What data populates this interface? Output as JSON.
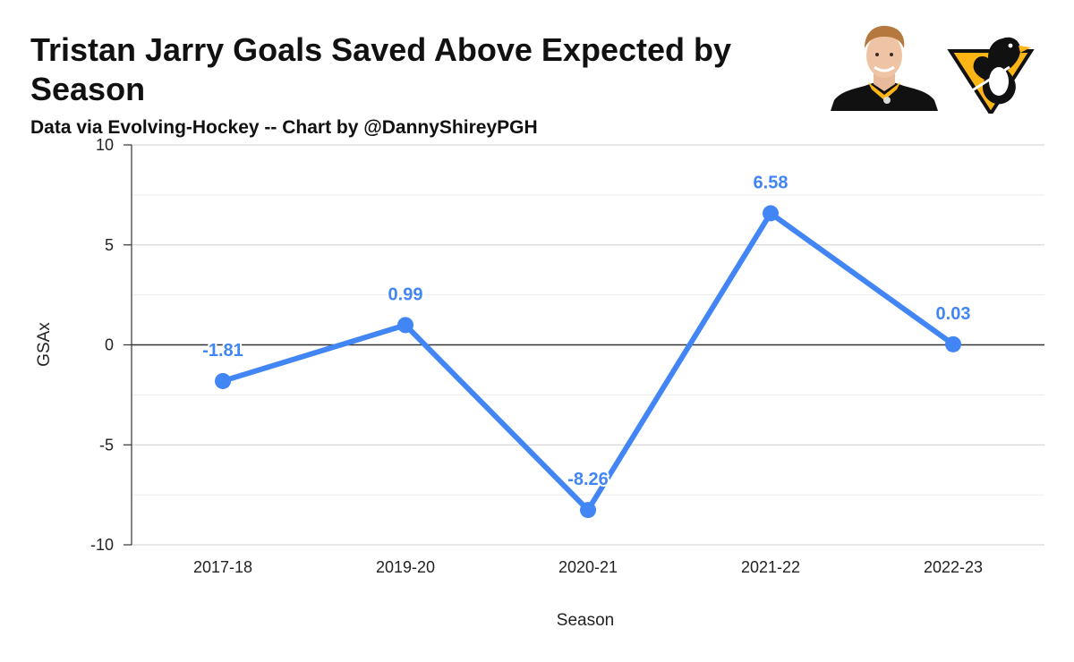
{
  "header": {
    "title": "Tristan Jarry Goals Saved Above Expected by Season",
    "subtitle": "Data via Evolving-Hockey -- Chart by @DannyShireyPGH"
  },
  "images": {
    "player_photo_icon": "goalie-headshot-icon",
    "team_logo_icon": "penguins-logo-icon"
  },
  "colors": {
    "series": "#4285F4",
    "zero_line": "#333333",
    "grid_major": "#cfcfcf",
    "grid_minor": "#ececec",
    "penguins_gold": "#FCB514",
    "penguins_black": "#111111"
  },
  "chart_data": {
    "type": "line",
    "categories": [
      "2017-18",
      "2019-20",
      "2020-21",
      "2021-22",
      "2022-23"
    ],
    "series": [
      {
        "values": [
          -1.81,
          0.99,
          -8.26,
          6.58,
          0.03
        ],
        "labels": [
          "-1.81",
          "0.99",
          "-8.26",
          "6.58",
          "0.03"
        ]
      }
    ],
    "title": "Tristan Jarry Goals Saved Above Expected by Season",
    "subtitle": "Data via Evolving-Hockey -- Chart by @DannyShireyPGH",
    "xlabel": "Season",
    "ylabel": "GSAx",
    "ylim": [
      -10,
      10
    ],
    "yticks": [
      10,
      5,
      0,
      -5,
      -10
    ],
    "ytick_labels": [
      "10",
      "5",
      "0",
      "-5",
      "-10"
    ],
    "minor_gridlines": [
      7.5,
      2.5,
      -2.5,
      -7.5
    ],
    "grid": true,
    "legend": "none"
  }
}
